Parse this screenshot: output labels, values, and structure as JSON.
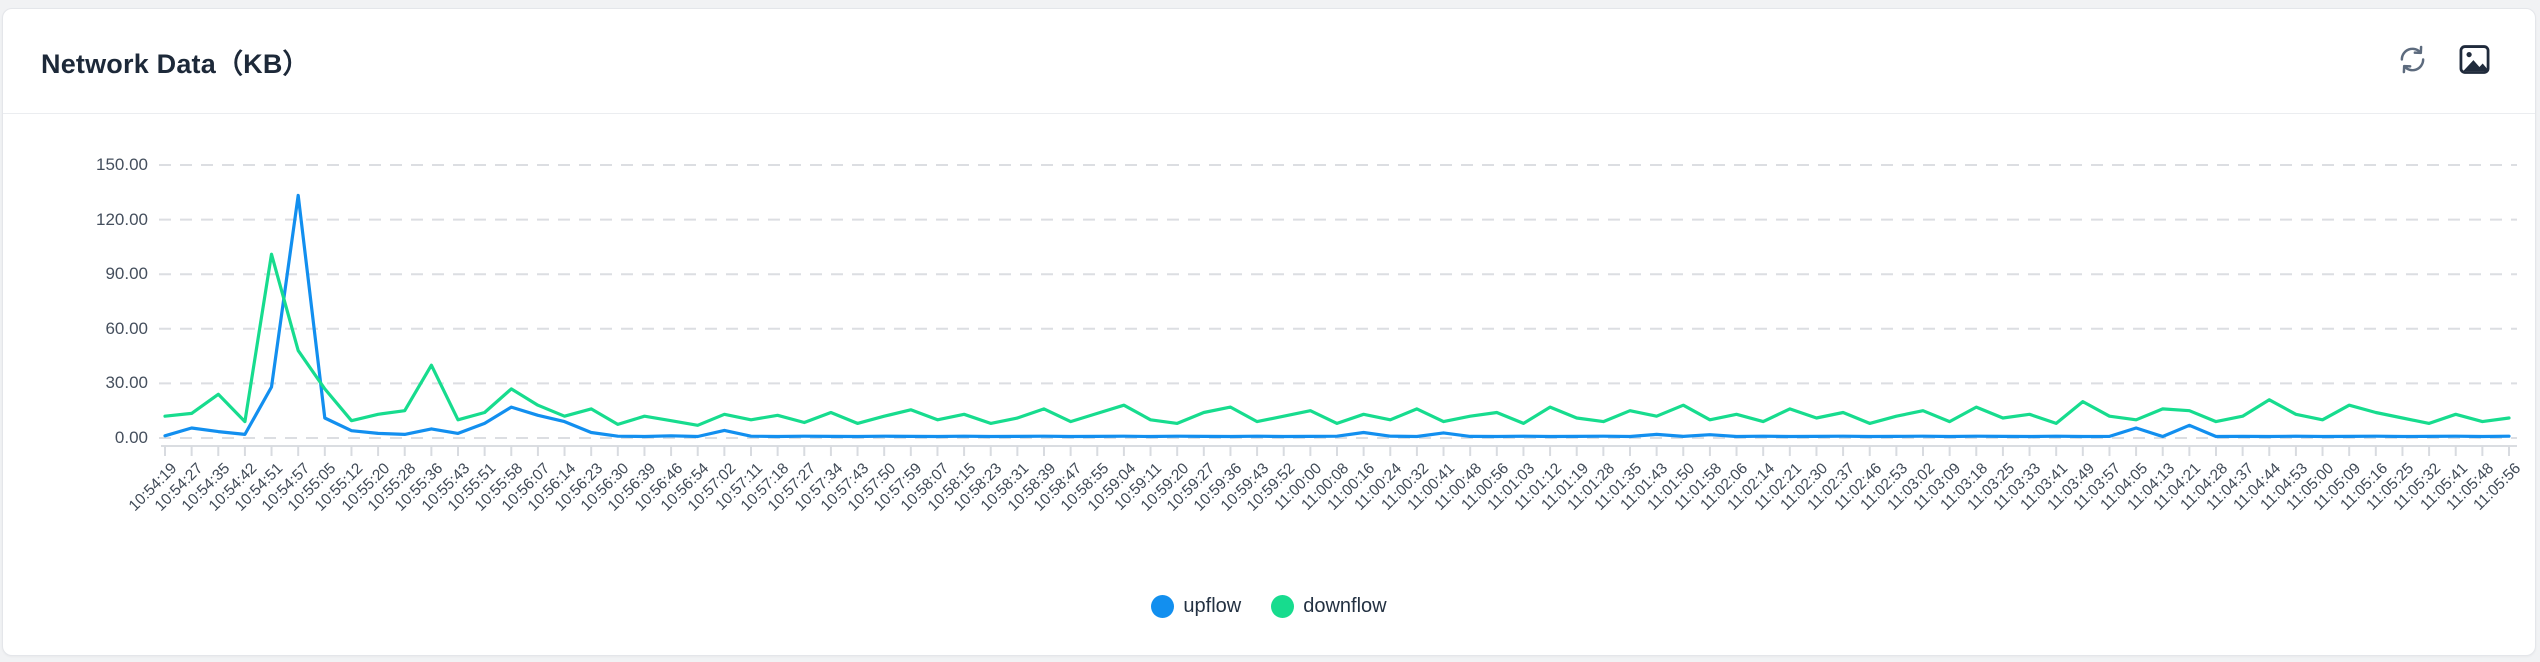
{
  "header": {
    "title": "Network Data（KB）",
    "actions": [
      {
        "icon": "refresh-icon"
      },
      {
        "icon": "save-image-icon"
      }
    ]
  },
  "chart_data": {
    "type": "line",
    "title": "Network Data（KB）",
    "xlabel": "",
    "ylabel": "",
    "ylim": [
      0,
      150
    ],
    "y_ticks": [
      "150.00",
      "120.00",
      "90.00",
      "60.00",
      "30.00",
      "0.00"
    ],
    "grid": "horizontal-dashed",
    "legend_position": "bottom",
    "x_label_rotation": 45,
    "x": [
      "10:54:19",
      "10:54:27",
      "10:54:35",
      "10:54:42",
      "10:54:51",
      "10:54:57",
      "10:55:05",
      "10:55:12",
      "10:55:20",
      "10:55:28",
      "10:55:36",
      "10:55:43",
      "10:55:51",
      "10:55:58",
      "10:56:07",
      "10:56:14",
      "10:56:23",
      "10:56:30",
      "10:56:39",
      "10:56:46",
      "10:56:54",
      "10:57:02",
      "10:57:11",
      "10:57:18",
      "10:57:27",
      "10:57:34",
      "10:57:43",
      "10:57:50",
      "10:57:59",
      "10:58:07",
      "10:58:15",
      "10:58:23",
      "10:58:31",
      "10:58:39",
      "10:58:47",
      "10:58:55",
      "10:59:04",
      "10:59:11",
      "10:59:20",
      "10:59:27",
      "10:59:36",
      "10:59:43",
      "10:59:52",
      "11:00:00",
      "11:00:08",
      "11:00:16",
      "11:00:24",
      "11:00:32",
      "11:00:41",
      "11:00:48",
      "11:00:56",
      "11:01:03",
      "11:01:12",
      "11:01:19",
      "11:01:28",
      "11:01:35",
      "11:01:43",
      "11:01:50",
      "11:01:58",
      "11:02:06",
      "11:02:14",
      "11:02:21",
      "11:02:30",
      "11:02:37",
      "11:02:46",
      "11:02:53",
      "11:03:02",
      "11:03:09",
      "11:03:18",
      "11:03:25",
      "11:03:33",
      "11:03:41",
      "11:03:49",
      "11:03:57",
      "11:04:05",
      "11:04:13",
      "11:04:21",
      "11:04:28",
      "11:04:37",
      "11:04:44",
      "11:04:53",
      "11:05:00",
      "11:05:09",
      "11:05:16",
      "11:05:25",
      "11:05:32",
      "11:05:41",
      "11:05:48",
      "11:05:56"
    ],
    "series": [
      {
        "name": "upflow",
        "color": "#128FEF",
        "values": [
          1.2,
          5.5,
          3.5,
          2,
          28,
          133.3,
          11,
          4,
          2.5,
          2,
          5,
          2.5,
          8,
          17,
          12.5,
          9,
          3,
          1,
          0.8,
          1.2,
          0.8,
          4.2,
          1,
          0.8,
          1,
          0.9,
          0.8,
          1,
          0.9,
          0.8,
          1,
          0.8,
          0.9,
          1,
          0.8,
          0.9,
          1,
          0.8,
          1,
          0.9,
          0.8,
          1,
          0.8,
          0.9,
          1,
          3,
          1,
          0.8,
          2.8,
          0.9,
          0.8,
          1,
          0.8,
          0.9,
          1,
          0.8,
          2,
          0.9,
          1.8,
          0.8,
          1,
          0.8,
          0.9,
          1,
          0.8,
          0.9,
          1,
          0.8,
          1,
          0.9,
          0.8,
          1,
          0.8,
          0.9,
          5.5,
          0.8,
          7,
          0.8,
          0.9,
          0.8,
          1,
          0.8,
          0.9,
          1,
          0.8,
          0.9,
          1,
          0.8,
          1
        ]
      },
      {
        "name": "downflow",
        "color": "#17DC8E",
        "values": [
          12,
          13.5,
          24,
          9,
          101,
          48,
          27,
          9.5,
          13,
          15,
          40,
          10,
          14,
          27,
          18,
          12,
          16,
          7.5,
          12,
          9.5,
          7,
          13,
          10,
          12.5,
          8.5,
          14,
          8,
          12,
          15.5,
          10,
          13,
          8,
          11,
          16,
          9,
          13.5,
          18,
          10,
          8,
          14,
          17,
          9,
          12,
          15,
          8,
          13,
          10,
          16,
          9,
          12,
          14,
          8,
          17,
          11,
          9,
          15,
          12,
          18,
          10,
          13,
          9,
          16,
          11,
          14,
          8,
          12,
          15,
          9,
          17,
          11,
          13,
          8,
          20,
          12,
          10,
          16,
          15,
          9,
          12,
          21,
          13,
          10,
          18,
          14,
          11,
          8,
          13,
          9,
          11
        ]
      }
    ]
  }
}
